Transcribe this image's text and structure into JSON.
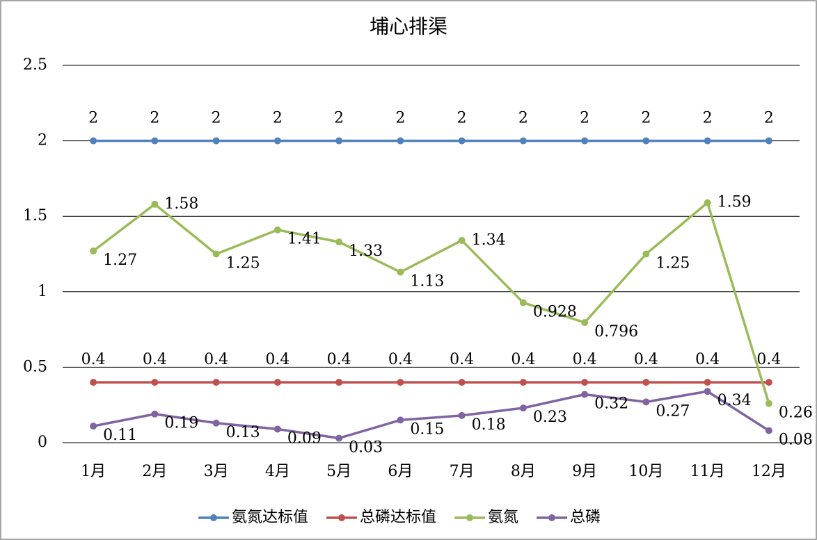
{
  "chart_data": {
    "type": "line",
    "title": "埔心排渠",
    "categories": [
      "1月",
      "2月",
      "3月",
      "4月",
      "5月",
      "6月",
      "7月",
      "8月",
      "9月",
      "10月",
      "11月",
      "12月"
    ],
    "series": [
      {
        "name": "氨氮达标值",
        "color": "#4f81bd",
        "values": [
          2,
          2,
          2,
          2,
          2,
          2,
          2,
          2,
          2,
          2,
          2,
          2
        ]
      },
      {
        "name": "总磷达标值",
        "color": "#c0504d",
        "values": [
          0.4,
          0.4,
          0.4,
          0.4,
          0.4,
          0.4,
          0.4,
          0.4,
          0.4,
          0.4,
          0.4,
          0.4
        ]
      },
      {
        "name": "氨氮",
        "color": "#9bbb59",
        "values": [
          1.27,
          1.58,
          1.25,
          1.41,
          1.33,
          1.13,
          1.34,
          0.928,
          0.796,
          1.25,
          1.59,
          0.26
        ]
      },
      {
        "name": "总磷",
        "color": "#8064a2",
        "values": [
          0.11,
          0.19,
          0.13,
          0.09,
          0.03,
          0.15,
          0.18,
          0.23,
          0.32,
          0.27,
          0.34,
          0.08
        ]
      }
    ],
    "ylim": [
      0,
      2.5
    ],
    "yticks": [
      0,
      0.5,
      1,
      1.5,
      2,
      2.5
    ],
    "grid": true,
    "legend": "bottom"
  }
}
